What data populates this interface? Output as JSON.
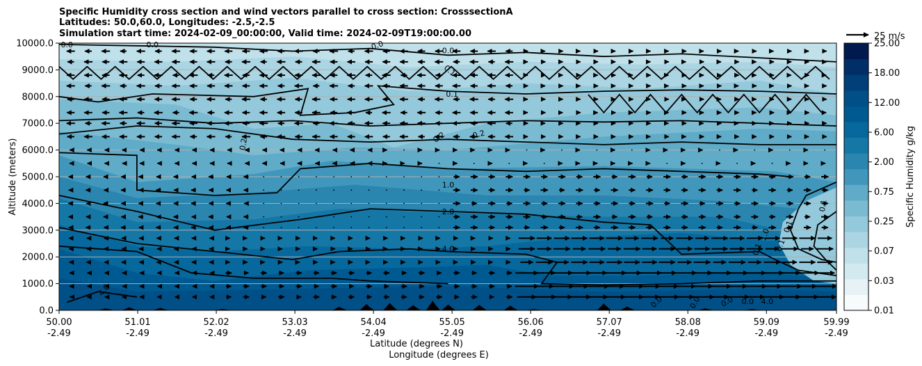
{
  "chart_data": {
    "type": "contour",
    "title_lines": [
      "Specific Humidity cross section and wind vectors parallel to cross section: CrosssectionA",
      "Latitudes: 50.0,60.0, Longitudes: -2.5,-2.5",
      "Simulation start time: 2024-02-09_00:00:00, Valid time: 2024-02-09T19:00:00.00"
    ],
    "ylabel": "Altitude (meters)",
    "xlabel_lines": [
      "Latitude (degrees N)",
      "Longitude (degrees E)"
    ],
    "ylim": [
      0,
      10000
    ],
    "xlim": [
      50.0,
      59.99
    ],
    "y_ticks": [
      "0.0",
      "1000.0",
      "2000.0",
      "3000.0",
      "4000.0",
      "5000.0",
      "6000.0",
      "7000.0",
      "8000.0",
      "9000.0",
      "10000.0"
    ],
    "x_ticks": [
      {
        "lat": "50.00",
        "lon": "-2.49",
        "v": 50.0
      },
      {
        "lat": "51.01",
        "lon": "-2.49",
        "v": 51.01
      },
      {
        "lat": "52.02",
        "lon": "-2.49",
        "v": 52.02
      },
      {
        "lat": "53.03",
        "lon": "-2.49",
        "v": 53.03
      },
      {
        "lat": "54.04",
        "lon": "-2.49",
        "v": 54.04
      },
      {
        "lat": "55.05",
        "lon": "-2.49",
        "v": 55.05
      },
      {
        "lat": "56.06",
        "lon": "-2.49",
        "v": 56.06
      },
      {
        "lat": "57.07",
        "lon": "-2.49",
        "v": 57.07
      },
      {
        "lat": "58.08",
        "lon": "-2.49",
        "v": 58.08
      },
      {
        "lat": "59.09",
        "lon": "-2.49",
        "v": 59.09
      },
      {
        "lat": "59.99",
        "lon": "-2.49",
        "v": 59.99
      }
    ],
    "colorbar": {
      "label": "Specific Humidity g/kg",
      "tick_labels": [
        "0.01",
        "0.03",
        "0.07",
        "0.25",
        "0.75",
        "2.00",
        "6.00",
        "12.00",
        "18.00",
        "25.00"
      ],
      "colors": [
        "#f7fbfc",
        "#e6f2f6",
        "#d3e9f0",
        "#c0e0ea",
        "#abd5e3",
        "#94c9db",
        "#7bbbd2",
        "#5fabc8",
        "#4197bb",
        "#2a85af",
        "#1577a6",
        "#06689c",
        "#005a92",
        "#004f87",
        "#003f78",
        "#002e66",
        "#001a50"
      ]
    },
    "contour_levels": [
      {
        "label": "0.0",
        "color": "#000000"
      },
      {
        "label": "0.1",
        "color": "#000000"
      },
      {
        "label": "0.2",
        "color": "#000000"
      },
      {
        "label": "1.0",
        "color": "#000000"
      },
      {
        "label": "2.0",
        "color": "#000000"
      },
      {
        "label": "4.0",
        "color": "#000000"
      }
    ],
    "inline_labels": [
      "0.0",
      "0.0",
      "0.0",
      "0.0",
      "0.1",
      "0.1",
      "0.2",
      "0.2",
      "0.2",
      "1.0",
      "2.0",
      "4.0",
      "4.0",
      "1.0",
      "0.1",
      "0.1",
      "0.1",
      "0.1",
      "0.0",
      "0.0",
      "0.0",
      "0.0",
      "4.0"
    ],
    "wind_key": {
      "label": "25 m/s",
      "speed": 25
    },
    "wind_rows_m": [
      500,
      900,
      1400,
      1800,
      2300,
      2700,
      3100,
      3500,
      4000,
      4500,
      5000,
      5500,
      6000,
      6500,
      7000,
      7400,
      7900,
      8400,
      8800,
      9300,
      9700
    ],
    "terrain_peaks": [
      {
        "lat": 50.6,
        "h": 60
      },
      {
        "lat": 50.9,
        "h": 100
      },
      {
        "lat": 51.3,
        "h": 80
      },
      {
        "lat": 52.1,
        "h": 40
      },
      {
        "lat": 53.6,
        "h": 120
      },
      {
        "lat": 53.95,
        "h": 220
      },
      {
        "lat": 54.25,
        "h": 260
      },
      {
        "lat": 54.55,
        "h": 180
      },
      {
        "lat": 54.8,
        "h": 340
      },
      {
        "lat": 55.0,
        "h": 200
      },
      {
        "lat": 55.4,
        "h": 190
      },
      {
        "lat": 55.8,
        "h": 160
      },
      {
        "lat": 56.1,
        "h": 30
      },
      {
        "lat": 57.0,
        "h": 240
      },
      {
        "lat": 57.3,
        "h": 130
      },
      {
        "lat": 58.3,
        "h": 60
      },
      {
        "lat": 58.9,
        "h": 40
      }
    ],
    "grid": true
  }
}
